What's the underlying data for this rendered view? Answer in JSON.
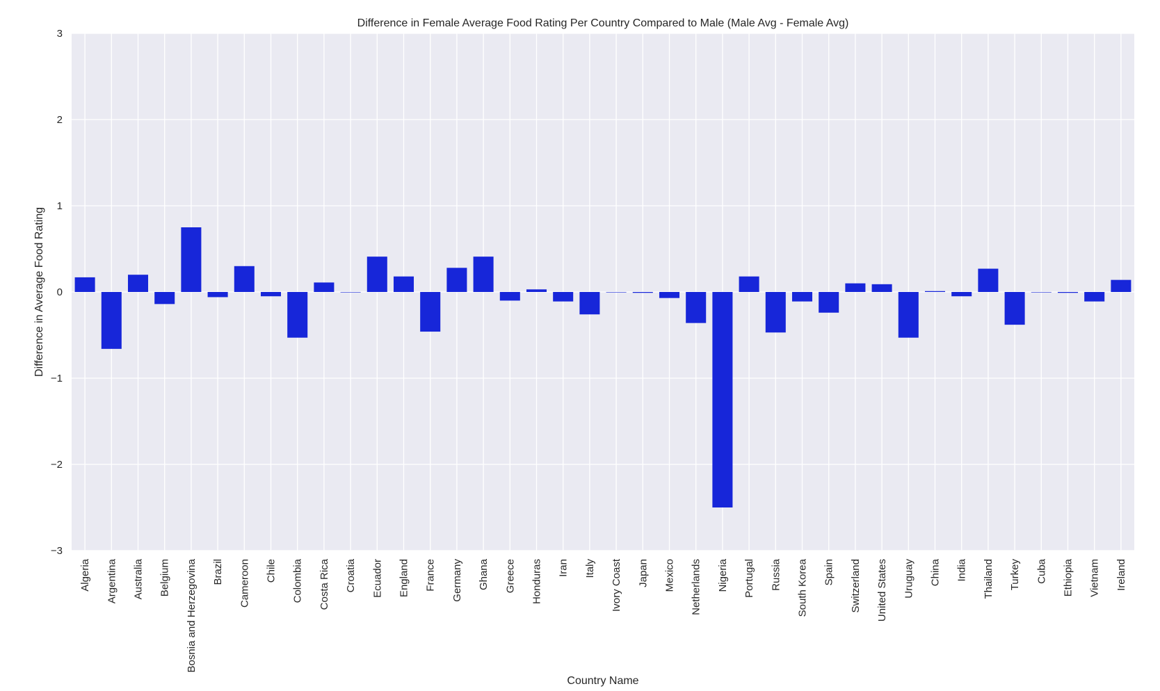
{
  "chart_data": {
    "type": "bar",
    "title": "Difference in Female Average Food Rating Per Country Compared to Male (Male Avg - Female Avg)",
    "xlabel": "Country Name",
    "ylabel": "Difference in Average Food Rating",
    "ylim": [
      -3,
      3
    ],
    "yticks": [
      -3,
      -2,
      -1,
      0,
      1,
      2,
      3
    ],
    "ytick_labels": [
      "−3",
      "−2",
      "−1",
      "0",
      "1",
      "2",
      "3"
    ],
    "grid": true,
    "bar_color": "#1726D9",
    "background_color": "#EAEAF2",
    "grid_color": "#FFFFFF",
    "categories": [
      "Algeria",
      "Argentina",
      "Australia",
      "Belgium",
      "Bosnia and Herzegovina",
      "Brazil",
      "Cameroon",
      "Chile",
      "Colombia",
      "Costa Rica",
      "Croatia",
      "Ecuador",
      "England",
      "France",
      "Germany",
      "Ghana",
      "Greece",
      "Honduras",
      "Iran",
      "Italy",
      "Ivory Coast",
      "Japan",
      "Mexico",
      "Netherlands",
      "Nigeria",
      "Portugal",
      "Russia",
      "South Korea",
      "Spain",
      "Switzerland",
      "United States",
      "Uruguay",
      "China",
      "India",
      "Thailand",
      "Turkey",
      "Cuba",
      "Ethiopia",
      "Vietnam",
      "Ireland"
    ],
    "values": [
      0.17,
      -0.66,
      0.2,
      -0.14,
      0.75,
      -0.06,
      0.3,
      -0.05,
      -0.53,
      0.11,
      0.0,
      0.41,
      0.18,
      -0.46,
      0.28,
      0.41,
      -0.1,
      0.03,
      -0.11,
      -0.26,
      0.0,
      -0.01,
      -0.07,
      -0.36,
      -2.5,
      0.18,
      -0.47,
      -0.11,
      -0.24,
      0.1,
      0.09,
      -0.53,
      0.01,
      -0.05,
      0.27,
      -0.38,
      0.0,
      -0.01,
      -0.11,
      0.14
    ]
  }
}
